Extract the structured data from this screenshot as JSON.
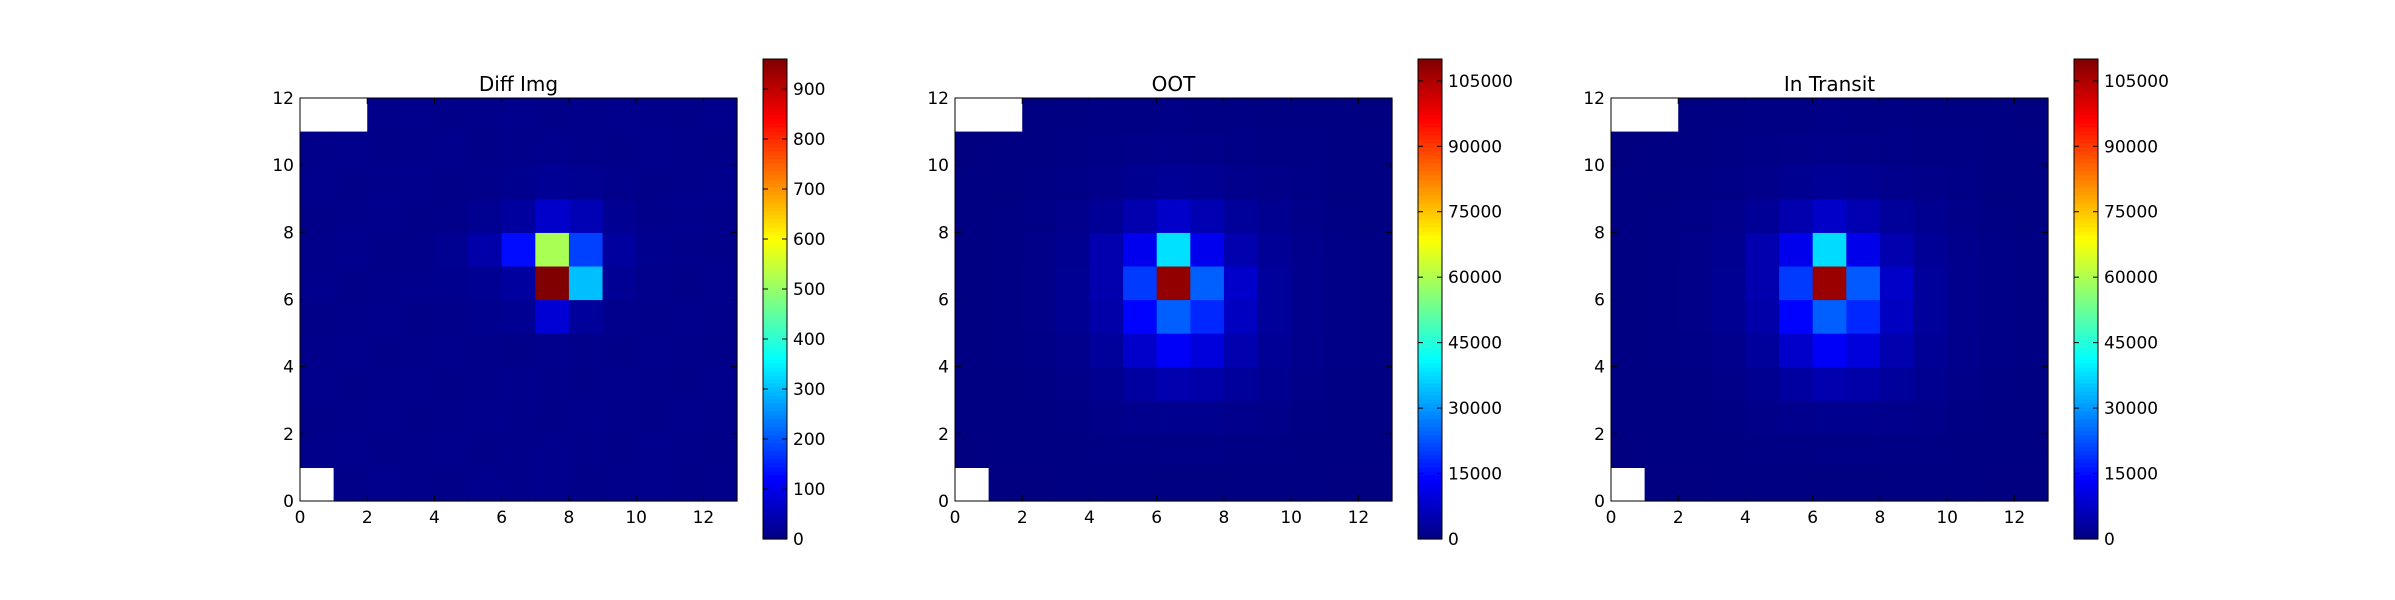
{
  "chart_data": [
    {
      "type": "heatmap",
      "title": "Diff Img",
      "xlim": [
        0,
        13
      ],
      "ylim": [
        0,
        12
      ],
      "x_ticks": [
        "0",
        "2",
        "4",
        "6",
        "8",
        "10",
        "12"
      ],
      "y_ticks": [
        "0",
        "2",
        "4",
        "6",
        "8",
        "10",
        "12"
      ],
      "colormap": "jet",
      "colorbar": {
        "min": 0,
        "max": 960,
        "ticks": [
          "0",
          "100",
          "200",
          "300",
          "400",
          "500",
          "600",
          "700",
          "800",
          "900"
        ]
      },
      "masked_cells": [
        [
          0,
          0
        ],
        [
          0,
          11
        ],
        [
          1,
          11
        ]
      ],
      "grid": [
        [
          null,
          8,
          12,
          10,
          8,
          12,
          10,
          12,
          8,
          10,
          12,
          8,
          10
        ],
        [
          10,
          12,
          8,
          10,
          12,
          8,
          10,
          12,
          10,
          8,
          12,
          10,
          8
        ],
        [
          8,
          10,
          12,
          8,
          10,
          12,
          10,
          8,
          12,
          10,
          8,
          12,
          10
        ],
        [
          12,
          8,
          10,
          12,
          8,
          10,
          12,
          10,
          8,
          12,
          10,
          8,
          12
        ],
        [
          10,
          12,
          8,
          10,
          12,
          10,
          8,
          12,
          10,
          8,
          12,
          10,
          8
        ],
        [
          8,
          10,
          12,
          8,
          10,
          14,
          18,
          80,
          25,
          12,
          10,
          12,
          10
        ],
        [
          12,
          8,
          10,
          12,
          14,
          18,
          30,
          960,
          300,
          20,
          12,
          8,
          12
        ],
        [
          10,
          12,
          8,
          10,
          16,
          40,
          130,
          520,
          180,
          30,
          14,
          10,
          8
        ],
        [
          8,
          10,
          12,
          8,
          10,
          16,
          30,
          70,
          50,
          18,
          10,
          12,
          10
        ],
        [
          12,
          8,
          10,
          12,
          8,
          10,
          14,
          20,
          16,
          12,
          8,
          10,
          12
        ],
        [
          10,
          12,
          8,
          10,
          12,
          8,
          10,
          12,
          10,
          8,
          12,
          10,
          8
        ],
        [
          null,
          null,
          10,
          12,
          8,
          10,
          12,
          8,
          10,
          12,
          10,
          8,
          12
        ]
      ]
    },
    {
      "type": "heatmap",
      "title": "OOT",
      "xlim": [
        0,
        13
      ],
      "ylim": [
        0,
        12
      ],
      "x_ticks": [
        "0",
        "2",
        "4",
        "6",
        "8",
        "10",
        "12"
      ],
      "y_ticks": [
        "0",
        "2",
        "4",
        "6",
        "8",
        "10",
        "12"
      ],
      "colormap": "jet",
      "colorbar": {
        "min": 0,
        "max": 110000,
        "ticks": [
          "0",
          "15000",
          "30000",
          "45000",
          "60000",
          "75000",
          "90000",
          "105000"
        ]
      },
      "masked_cells": [
        [
          0,
          0
        ],
        [
          0,
          11
        ],
        [
          1,
          11
        ]
      ],
      "grid": [
        [
          null,
          150,
          200,
          250,
          300,
          350,
          400,
          400,
          350,
          300,
          250,
          200,
          150
        ],
        [
          200,
          250,
          300,
          400,
          500,
          600,
          700,
          700,
          600,
          500,
          400,
          300,
          250
        ],
        [
          250,
          300,
          400,
          600,
          900,
          1300,
          1600,
          1600,
          1300,
          900,
          600,
          400,
          300
        ],
        [
          300,
          400,
          600,
          1000,
          1800,
          3500,
          5000,
          4500,
          3000,
          1800,
          1000,
          600,
          400
        ],
        [
          350,
          500,
          800,
          1500,
          3000,
          8000,
          13000,
          10000,
          5000,
          2500,
          1300,
          700,
          450
        ],
        [
          400,
          600,
          1000,
          2000,
          4500,
          14000,
          24000,
          18000,
          7000,
          3000,
          1500,
          800,
          500
        ],
        [
          400,
          600,
          1000,
          2000,
          5000,
          20000,
          108000,
          24000,
          8000,
          3000,
          1500,
          800,
          500
        ],
        [
          350,
          550,
          900,
          1800,
          5000,
          12000,
          38000,
          12000,
          5000,
          2500,
          1300,
          700,
          450
        ],
        [
          300,
          450,
          700,
          1300,
          2500,
          5000,
          8000,
          5500,
          3000,
          1800,
          1000,
          600,
          400
        ],
        [
          250,
          350,
          500,
          800,
          1200,
          1800,
          2500,
          2000,
          1500,
          1000,
          700,
          400,
          300
        ],
        [
          200,
          250,
          350,
          500,
          700,
          900,
          1100,
          1000,
          800,
          600,
          450,
          300,
          250
        ],
        [
          null,
          null,
          250,
          350,
          450,
          550,
          650,
          600,
          500,
          400,
          300,
          250,
          200
        ]
      ]
    },
    {
      "type": "heatmap",
      "title": "In Transit",
      "xlim": [
        0,
        13
      ],
      "ylim": [
        0,
        12
      ],
      "x_ticks": [
        "0",
        "2",
        "4",
        "6",
        "8",
        "10",
        "12"
      ],
      "y_ticks": [
        "0",
        "2",
        "4",
        "6",
        "8",
        "10",
        "12"
      ],
      "colormap": "jet",
      "colorbar": {
        "min": 0,
        "max": 110000,
        "ticks": [
          "0",
          "15000",
          "30000",
          "45000",
          "60000",
          "75000",
          "90000",
          "105000"
        ]
      },
      "masked_cells": [
        [
          0,
          0
        ],
        [
          0,
          11
        ],
        [
          1,
          11
        ]
      ],
      "grid": [
        [
          null,
          150,
          200,
          250,
          300,
          350,
          400,
          400,
          350,
          300,
          250,
          200,
          150
        ],
        [
          200,
          250,
          300,
          400,
          500,
          600,
          700,
          700,
          600,
          500,
          400,
          300,
          250
        ],
        [
          250,
          300,
          400,
          600,
          900,
          1300,
          1600,
          1600,
          1300,
          900,
          600,
          400,
          300
        ],
        [
          300,
          400,
          600,
          1000,
          1800,
          3500,
          5000,
          4500,
          3000,
          1800,
          1000,
          600,
          400
        ],
        [
          350,
          500,
          800,
          1500,
          3000,
          8000,
          13000,
          10000,
          5000,
          2500,
          1300,
          700,
          450
        ],
        [
          400,
          600,
          1000,
          2000,
          4500,
          14000,
          24000,
          18000,
          7000,
          3000,
          1500,
          800,
          500
        ],
        [
          400,
          600,
          1000,
          2000,
          5000,
          20000,
          107000,
          23500,
          7800,
          3000,
          1500,
          800,
          500
        ],
        [
          350,
          550,
          900,
          1800,
          5000,
          11800,
          37500,
          11500,
          5000,
          2500,
          1300,
          700,
          450
        ],
        [
          300,
          450,
          700,
          1300,
          2500,
          5000,
          7900,
          5400,
          3000,
          1800,
          1000,
          600,
          400
        ],
        [
          250,
          350,
          500,
          800,
          1200,
          1800,
          2500,
          2000,
          1500,
          1000,
          700,
          400,
          300
        ],
        [
          200,
          250,
          350,
          500,
          700,
          900,
          1100,
          1000,
          800,
          600,
          450,
          300,
          250
        ],
        [
          null,
          null,
          250,
          350,
          450,
          550,
          650,
          600,
          500,
          400,
          300,
          250,
          200
        ]
      ]
    }
  ]
}
